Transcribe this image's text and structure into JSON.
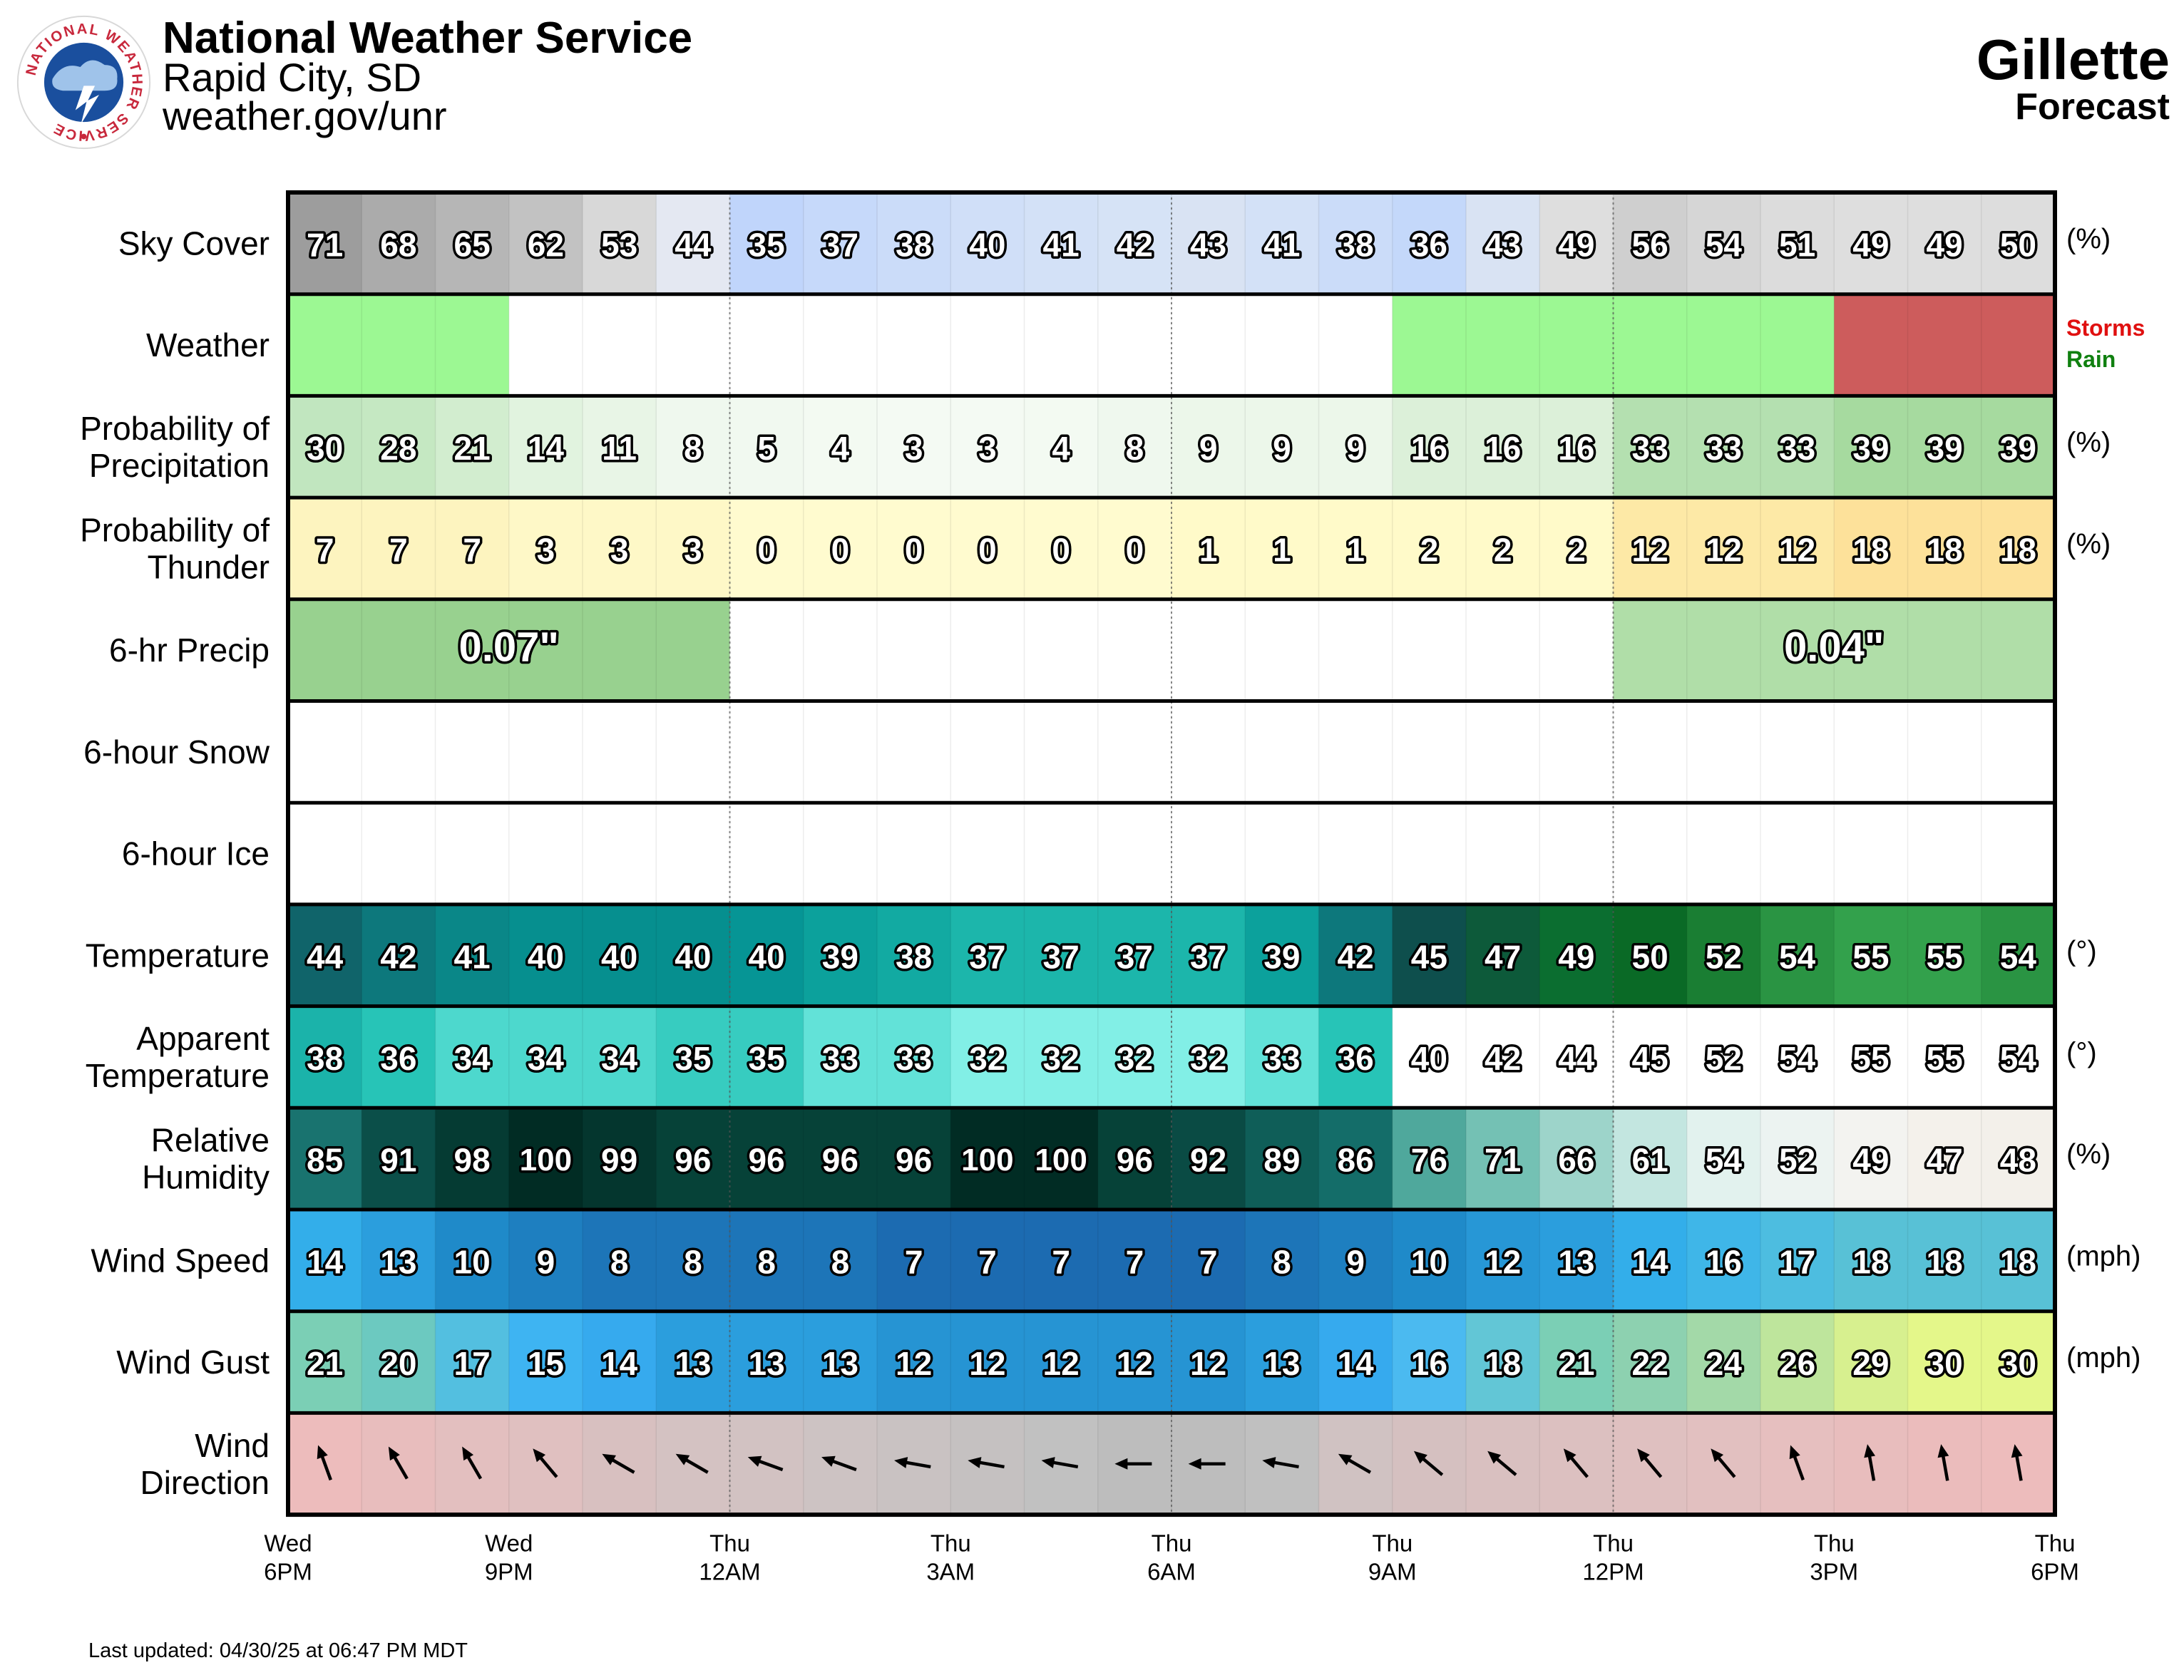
{
  "header": {
    "org": "National Weather Service",
    "office": "Rapid City, SD",
    "site": "weather.gov/unr",
    "location": "Gillette",
    "subtitle": "Forecast",
    "logo_text": "NATIONAL WEATHER SERVICE"
  },
  "updated": "Last updated: 04/30/25 at 06:47 PM MDT",
  "chart_data": {
    "type": "heatmap",
    "hours": 24,
    "time_labels": [
      {
        "at": 0,
        "day": "Wed",
        "time": "6PM"
      },
      {
        "at": 3,
        "day": "Wed",
        "time": "9PM"
      },
      {
        "at": 6,
        "day": "Thu",
        "time": "12AM"
      },
      {
        "at": 9,
        "day": "Thu",
        "time": "3AM"
      },
      {
        "at": 12,
        "day": "Thu",
        "time": "6AM"
      },
      {
        "at": 15,
        "day": "Thu",
        "time": "9AM"
      },
      {
        "at": 18,
        "day": "Thu",
        "time": "12PM"
      },
      {
        "at": 21,
        "day": "Thu",
        "time": "3PM"
      },
      {
        "at": 24,
        "day": "Thu",
        "time": "6PM"
      }
    ],
    "rows": [
      {
        "key": "sky",
        "label": [
          "Sky Cover"
        ],
        "unit": "(%)",
        "values": [
          71,
          68,
          65,
          62,
          53,
          44,
          35,
          37,
          38,
          40,
          41,
          42,
          43,
          41,
          38,
          36,
          43,
          49,
          56,
          54,
          51,
          49,
          49,
          50
        ],
        "colors": [
          "#9d9d9d",
          "#ababab",
          "#b6b6b6",
          "#c2c2c2",
          "#d8d8d8",
          "#e4e8f2",
          "#c0d5fb",
          "#c6d9fa",
          "#cbdcf9",
          "#d0dff8",
          "#d3e1f7",
          "#d6e3f6",
          "#d9e3f3",
          "#d3e1f7",
          "#cbdcf9",
          "#c4d8fa",
          "#d9e3f3",
          "#dedede",
          "#cfcfcf",
          "#d6d6d6",
          "#dcdcdc",
          "#dedede",
          "#dedede",
          "#dddddd"
        ]
      },
      {
        "key": "weather",
        "label": [
          "Weather"
        ],
        "unit": "",
        "legend": [
          {
            "text": "Storms",
            "color": "#e01010"
          },
          {
            "text": "Rain",
            "color": "#108010"
          }
        ],
        "colors": [
          "#9cf893",
          "#9cf893",
          "#9cf893",
          "#ffffff",
          "#ffffff",
          "#ffffff",
          "#ffffff",
          "#ffffff",
          "#ffffff",
          "#ffffff",
          "#ffffff",
          "#ffffff",
          "#ffffff",
          "#ffffff",
          "#ffffff",
          "#9cf893",
          "#9cf893",
          "#9cf893",
          "#9cf893",
          "#9cf893",
          "#9cf893",
          "#cd5c5c",
          "#cd5c5c",
          "#cd5c5c"
        ]
      },
      {
        "key": "pop",
        "label": [
          "Probability of",
          "Precipitation"
        ],
        "unit": "(%)",
        "values": [
          30,
          28,
          21,
          14,
          11,
          8,
          5,
          4,
          3,
          3,
          4,
          8,
          9,
          9,
          9,
          16,
          16,
          16,
          33,
          33,
          33,
          39,
          39,
          39
        ],
        "colors": [
          "#c1e6bf",
          "#c5e8c2",
          "#d2edcf",
          "#e1f3df",
          "#e8f5e6",
          "#eff8ee",
          "#f1f9f0",
          "#f3faf2",
          "#f4faf3",
          "#f4faf3",
          "#f3faf2",
          "#eff8ee",
          "#ecf7ea",
          "#ecf7ea",
          "#ecf7ea",
          "#dcf0d9",
          "#dcf0d9",
          "#dcf0d9",
          "#b4e0b0",
          "#b4e0b0",
          "#b4e0b0",
          "#a6da9f",
          "#a6da9f",
          "#a6da9f"
        ]
      },
      {
        "key": "thunder",
        "label": [
          "Probability of",
          "Thunder"
        ],
        "unit": "(%)",
        "values": [
          7,
          7,
          7,
          3,
          3,
          3,
          0,
          0,
          0,
          0,
          0,
          0,
          1,
          1,
          1,
          2,
          2,
          2,
          12,
          12,
          12,
          18,
          18,
          18
        ],
        "colors": [
          "#fdf4bf",
          "#fdf4bf",
          "#fdf4bf",
          "#fef8c7",
          "#fef8c7",
          "#fef8c7",
          "#fffbcf",
          "#fffbcf",
          "#fffbcf",
          "#fffbcf",
          "#fffbcf",
          "#fffbcf",
          "#fffac9",
          "#fffac9",
          "#fffac9",
          "#fffac9",
          "#fffac9",
          "#fffac9",
          "#fde9a6",
          "#fde9a6",
          "#fde9a6",
          "#fde19a",
          "#fde19a",
          "#fde19a"
        ]
      },
      {
        "key": "qpf",
        "label": [
          "6-hr Precip"
        ],
        "unit": "",
        "blocks": [
          {
            "start": 0,
            "span": 6,
            "text": "0.07\"",
            "color": "#98d18f"
          },
          {
            "start": 6,
            "span": 6,
            "text": "",
            "color": "#ffffff"
          },
          {
            "start": 12,
            "span": 6,
            "text": "",
            "color": "#ffffff"
          },
          {
            "start": 18,
            "span": 6,
            "text": "0.04\"",
            "color": "#b0dea8"
          }
        ]
      },
      {
        "key": "snow",
        "label": [
          "6-hour Snow"
        ],
        "unit": "",
        "blocks": []
      },
      {
        "key": "ice",
        "label": [
          "6-hour Ice"
        ],
        "unit": "",
        "blocks": []
      },
      {
        "key": "temp",
        "label": [
          "Temperature"
        ],
        "unit": "(°)",
        "values": [
          44,
          42,
          41,
          40,
          40,
          40,
          40,
          39,
          38,
          37,
          37,
          37,
          37,
          39,
          42,
          45,
          47,
          49,
          50,
          52,
          54,
          55,
          55,
          54
        ],
        "colors": [
          "#10646a",
          "#0d787c",
          "#0a8788",
          "#068f8f",
          "#068f8f",
          "#068f8f",
          "#069595",
          "#0ca19c",
          "#12aaa2",
          "#1cb6ab",
          "#1cb6ab",
          "#1cb6ab",
          "#1cb6ab",
          "#0ca19c",
          "#0d787c",
          "#0e4f4d",
          "#0d5a3a",
          "#0b6e30",
          "#0a6a26",
          "#1a7e33",
          "#2a9443",
          "#33a14c",
          "#33a14c",
          "#2a9443"
        ]
      },
      {
        "key": "apparent",
        "label": [
          "Apparent",
          "Temperature"
        ],
        "unit": "(°)",
        "values": [
          38,
          36,
          34,
          34,
          34,
          35,
          35,
          33,
          33,
          32,
          32,
          32,
          32,
          33,
          36,
          40,
          42,
          44,
          45,
          52,
          54,
          55,
          55,
          54
        ],
        "colors": [
          "#1bb3aa",
          "#27c4b7",
          "#4dd8cd",
          "#4dd8cd",
          "#4dd8cd",
          "#37ccc0",
          "#37ccc0",
          "#62e2d8",
          "#62e2d8",
          "#82efe6",
          "#82efe6",
          "#82efe6",
          "#82efe6",
          "#62e2d8",
          "#27c4b7",
          "#ffffff",
          "#ffffff",
          "#ffffff",
          "#ffffff",
          "#ffffff",
          "#ffffff",
          "#ffffff",
          "#ffffff",
          "#ffffff"
        ]
      },
      {
        "key": "rh",
        "label": [
          "Relative",
          "Humidity"
        ],
        "unit": "(%)",
        "values": [
          85,
          91,
          98,
          100,
          99,
          96,
          96,
          96,
          96,
          100,
          100,
          96,
          92,
          89,
          86,
          76,
          71,
          66,
          61,
          54,
          52,
          49,
          47,
          48
        ],
        "colors": [
          "#19736f",
          "#0b4f49",
          "#053b33",
          "#012c24",
          "#04362e",
          "#064238",
          "#064238",
          "#064238",
          "#064238",
          "#012c24",
          "#012c24",
          "#064238",
          "#0a4b44",
          "#0f5e58",
          "#146d69",
          "#4fa89c",
          "#74c1b4",
          "#9dd4ca",
          "#c3e6e0",
          "#e2f2ee",
          "#ecf3f1",
          "#f3f3f0",
          "#f4f1eb",
          "#f3f0ea"
        ]
      },
      {
        "key": "wind",
        "label": [
          "Wind Speed"
        ],
        "unit": "(mph)",
        "values": [
          14,
          13,
          10,
          9,
          8,
          8,
          8,
          8,
          7,
          7,
          7,
          7,
          7,
          8,
          9,
          10,
          12,
          13,
          14,
          16,
          17,
          18,
          18,
          18
        ],
        "colors": [
          "#33aeea",
          "#2b9edd",
          "#1f8ac9",
          "#1e7fc0",
          "#1d75b8",
          "#1d75b8",
          "#1d75b8",
          "#1d75b8",
          "#1c6bb1",
          "#1c6bb1",
          "#1c6bb1",
          "#1c6bb1",
          "#1c6bb1",
          "#1d75b8",
          "#1e7fc0",
          "#1f8ac9",
          "#2797d6",
          "#2b9edd",
          "#33aeea",
          "#3fb6e8",
          "#4dbde0",
          "#58c1d6",
          "#58c1d6",
          "#58c1d6"
        ]
      },
      {
        "key": "gust",
        "label": [
          "Wind Gust"
        ],
        "unit": "(mph)",
        "values": [
          21,
          20,
          17,
          15,
          14,
          13,
          13,
          13,
          12,
          12,
          12,
          12,
          12,
          13,
          14,
          16,
          18,
          21,
          22,
          24,
          26,
          29,
          30,
          30
        ],
        "colors": [
          "#7bcfb5",
          "#6cc9c0",
          "#53bfe0",
          "#3eb4f2",
          "#36aaee",
          "#2b9edd",
          "#2b9edd",
          "#2b9edd",
          "#2694d3",
          "#2694d3",
          "#2694d3",
          "#2694d3",
          "#2694d3",
          "#2b9edd",
          "#36aaee",
          "#4bbaf0",
          "#62c6d6",
          "#7bcfb5",
          "#8dd1b0",
          "#a3d9a8",
          "#bee59c",
          "#d7f08f",
          "#e4f78a",
          "#e4f78a"
        ]
      },
      {
        "key": "dir",
        "label": [
          "Wind",
          "Direction"
        ],
        "unit": "",
        "degrees": [
          340,
          330,
          330,
          320,
          300,
          300,
          290,
          290,
          280,
          280,
          280,
          270,
          270,
          280,
          300,
          310,
          310,
          320,
          320,
          320,
          340,
          350,
          350,
          350
        ],
        "colors": [
          "#edbcbc",
          "#e8bdbd",
          "#e3bfbf",
          "#e0c0c0",
          "#d8c0c0",
          "#d4c2c2",
          "#d2c2c2",
          "#cdc3c3",
          "#c9c2c2",
          "#c5c1c1",
          "#c1c1c1",
          "#bdbdbd",
          "#bdbdbd",
          "#c0c0c0",
          "#d0c2c2",
          "#d5c0c0",
          "#d9c0c0",
          "#dcc0c0",
          "#dfc0c0",
          "#e2c0c0",
          "#e6bfbf",
          "#e8bdbd",
          "#ebbcbc",
          "#edbcbc"
        ]
      }
    ]
  }
}
